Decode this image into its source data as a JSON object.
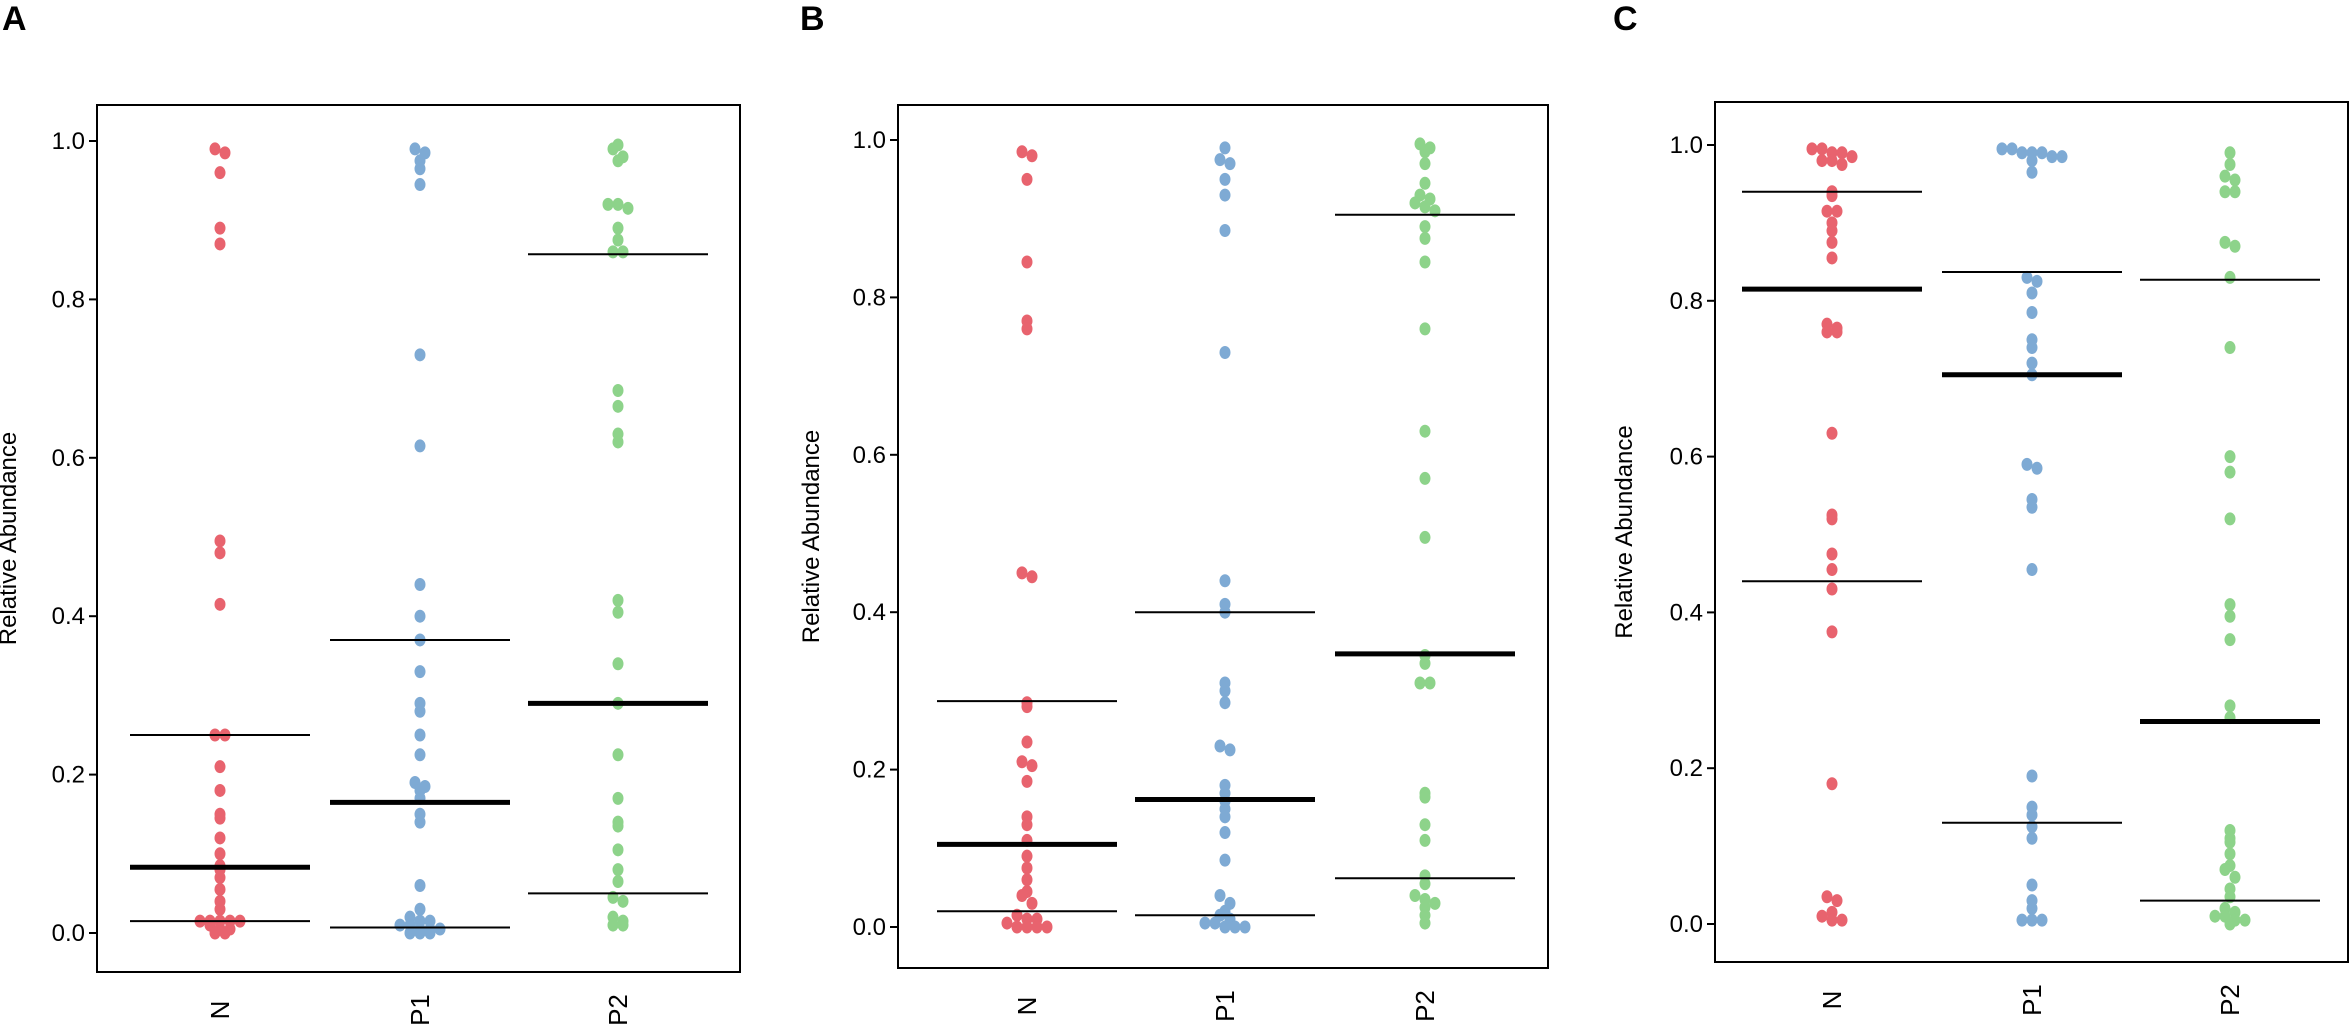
{
  "figure": {
    "colors": {
      "N": "#e8636e",
      "P1": "#7eaad4",
      "P2": "#8dd38a",
      "axis": "#000000"
    }
  },
  "chart_data": [
    {
      "panel": "A",
      "type": "scatter",
      "ylabel": "Relative Abundance",
      "ylim": [
        0,
        1
      ],
      "yticks": [
        "0.0",
        "0.2",
        "0.4",
        "0.6",
        "0.8",
        "1.0"
      ],
      "categories": [
        "N",
        "P1",
        "P2"
      ],
      "series": [
        {
          "name": "N",
          "values": [
            0.99,
            0.985,
            0.96,
            0.89,
            0.87,
            0.495,
            0.48,
            0.415,
            0.25,
            0.25,
            0.21,
            0.18,
            0.15,
            0.145,
            0.12,
            0.1,
            0.085,
            0.08,
            0.07,
            0.055,
            0.04,
            0.03,
            0.015,
            0.015,
            0.015,
            0.015,
            0.015,
            0.01,
            0.005,
            0.005,
            0.0,
            0.0
          ],
          "median": 0.083,
          "q1": 0.015,
          "q3": 0.25
        },
        {
          "name": "P1",
          "values": [
            0.99,
            0.985,
            0.975,
            0.965,
            0.945,
            0.73,
            0.615,
            0.44,
            0.4,
            0.37,
            0.33,
            0.29,
            0.28,
            0.25,
            0.225,
            0.19,
            0.185,
            0.18,
            0.17,
            0.15,
            0.14,
            0.06,
            0.03,
            0.02,
            0.015,
            0.015,
            0.01,
            0.01,
            0.005,
            0.005,
            0.005,
            0.0,
            0.0,
            0.0
          ],
          "median": 0.165,
          "q1": 0.007,
          "q3": 0.37
        },
        {
          "name": "P2",
          "values": [
            0.995,
            0.99,
            0.98,
            0.975,
            0.92,
            0.92,
            0.915,
            0.89,
            0.875,
            0.86,
            0.86,
            0.685,
            0.665,
            0.63,
            0.62,
            0.42,
            0.405,
            0.34,
            0.29,
            0.225,
            0.17,
            0.14,
            0.135,
            0.105,
            0.08,
            0.065,
            0.045,
            0.04,
            0.02,
            0.015,
            0.01,
            0.01
          ],
          "median": 0.29,
          "q1": 0.05,
          "q3": 0.857
        }
      ]
    },
    {
      "panel": "B",
      "type": "scatter",
      "ylabel": "Relative Abundance",
      "ylim": [
        0,
        1
      ],
      "yticks": [
        "0.0",
        "0.2",
        "0.4",
        "0.6",
        "0.8",
        "1.0"
      ],
      "categories": [
        "N",
        "P1",
        "P2"
      ],
      "series": [
        {
          "name": "N",
          "values": [
            0.985,
            0.98,
            0.95,
            0.845,
            0.77,
            0.76,
            0.45,
            0.445,
            0.285,
            0.28,
            0.235,
            0.21,
            0.205,
            0.185,
            0.14,
            0.13,
            0.11,
            0.09,
            0.075,
            0.06,
            0.045,
            0.04,
            0.03,
            0.015,
            0.01,
            0.01,
            0.005,
            0.0,
            0.0,
            0.0,
            0.0
          ],
          "median": 0.105,
          "q1": 0.02,
          "q3": 0.287
        },
        {
          "name": "P1",
          "values": [
            0.99,
            0.975,
            0.97,
            0.95,
            0.93,
            0.885,
            0.73,
            0.44,
            0.41,
            0.4,
            0.31,
            0.3,
            0.285,
            0.23,
            0.225,
            0.18,
            0.17,
            0.16,
            0.15,
            0.14,
            0.12,
            0.085,
            0.04,
            0.03,
            0.02,
            0.015,
            0.01,
            0.005,
            0.005,
            0.0,
            0.0,
            0.0
          ],
          "median": 0.162,
          "q1": 0.015,
          "q3": 0.4
        },
        {
          "name": "P2",
          "values": [
            0.995,
            0.99,
            0.985,
            0.97,
            0.945,
            0.93,
            0.925,
            0.92,
            0.915,
            0.91,
            0.89,
            0.875,
            0.845,
            0.76,
            0.63,
            0.57,
            0.495,
            0.345,
            0.335,
            0.31,
            0.31,
            0.17,
            0.165,
            0.13,
            0.11,
            0.065,
            0.055,
            0.04,
            0.035,
            0.03,
            0.025,
            0.015,
            0.005
          ],
          "median": 0.347,
          "q1": 0.062,
          "q3": 0.905
        }
      ]
    },
    {
      "panel": "C",
      "type": "scatter",
      "ylabel": "Relative Abundance",
      "ylim": [
        0,
        1
      ],
      "yticks": [
        "0.0",
        "0.2",
        "0.4",
        "0.6",
        "0.8",
        "1.0"
      ],
      "categories": [
        "N",
        "P1",
        "P2"
      ],
      "series": [
        {
          "name": "N",
          "values": [
            0.995,
            0.995,
            0.99,
            0.99,
            0.985,
            0.98,
            0.98,
            0.975,
            0.94,
            0.935,
            0.915,
            0.915,
            0.9,
            0.89,
            0.875,
            0.855,
            0.77,
            0.765,
            0.76,
            0.76,
            0.63,
            0.525,
            0.52,
            0.475,
            0.455,
            0.43,
            0.375,
            0.18,
            0.035,
            0.03,
            0.015,
            0.01,
            0.005,
            0.005
          ],
          "median": 0.815,
          "q1": 0.44,
          "q3": 0.94
        },
        {
          "name": "P1",
          "values": [
            0.995,
            0.995,
            0.99,
            0.99,
            0.99,
            0.985,
            0.985,
            0.98,
            0.965,
            0.83,
            0.825,
            0.81,
            0.785,
            0.75,
            0.74,
            0.72,
            0.705,
            0.59,
            0.585,
            0.545,
            0.535,
            0.455,
            0.19,
            0.15,
            0.14,
            0.125,
            0.11,
            0.05,
            0.03,
            0.02,
            0.005,
            0.005,
            0.005
          ],
          "median": 0.705,
          "q1": 0.13,
          "q3": 0.837
        },
        {
          "name": "P2",
          "values": [
            0.99,
            0.975,
            0.96,
            0.955,
            0.94,
            0.94,
            0.875,
            0.87,
            0.83,
            0.74,
            0.6,
            0.58,
            0.52,
            0.41,
            0.395,
            0.365,
            0.28,
            0.265,
            0.12,
            0.11,
            0.105,
            0.09,
            0.075,
            0.07,
            0.06,
            0.045,
            0.035,
            0.02,
            0.015,
            0.01,
            0.01,
            0.005,
            0.005,
            0.0
          ],
          "median": 0.26,
          "q1": 0.03,
          "q3": 0.827
        }
      ]
    }
  ]
}
